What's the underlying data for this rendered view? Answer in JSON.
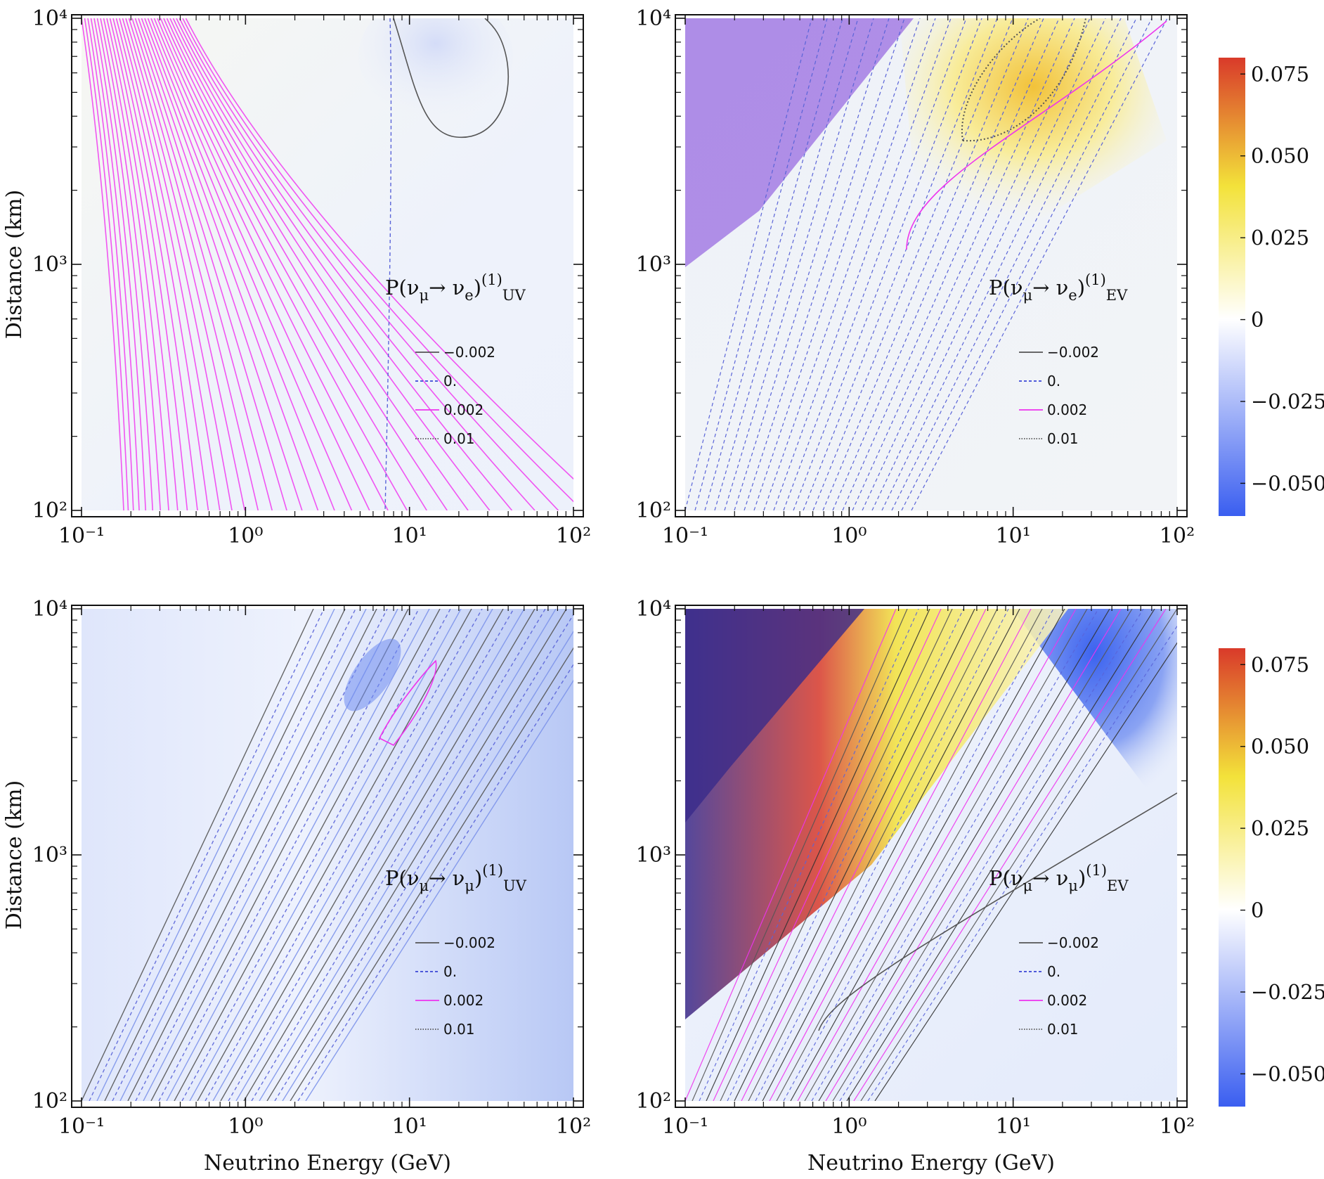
{
  "figure": {
    "xlabel": "Neutrino Energy (GeV)",
    "ylabel": "Distance (km)",
    "colorbar": {
      "ticks": [
        {
          "value": 0.075,
          "label": "0.075"
        },
        {
          "value": 0.05,
          "label": "0.050"
        },
        {
          "value": 0.025,
          "label": "0.025"
        },
        {
          "value": 0,
          "label": "0"
        },
        {
          "value": -0.025,
          "label": "−0.025"
        },
        {
          "value": -0.05,
          "label": "−0.050"
        }
      ],
      "range": [
        -0.06,
        0.08
      ],
      "colors": [
        "#3a5ef0",
        "#ffffff",
        "#f3e23a",
        "#d93a2a"
      ]
    },
    "legend": [
      {
        "label": "−0.002",
        "style": "solid",
        "color": "#555555"
      },
      {
        "label": "0.",
        "style": "dashed",
        "color": "#3a46d6"
      },
      {
        "label": "0.002",
        "style": "solid",
        "color": "#ee33ee"
      },
      {
        "label": "0.01",
        "style": "dotted",
        "color": "#555555"
      }
    ]
  },
  "chart_data": [
    {
      "type": "heatmap",
      "panel": "top-left",
      "title_base": "P(ν",
      "title_sub1": "μ",
      "title_arrow": "→ ν",
      "title_sub2": "e",
      "title_close": ")",
      "title_sup": "(1)",
      "title_subscript": "UV",
      "xlabel": "",
      "ylabel": "Distance (km)",
      "xscale": "log",
      "yscale": "log",
      "xlim": [
        0.1,
        100
      ],
      "ylim": [
        100,
        10000
      ],
      "xticks": [
        "10⁻¹",
        "10⁰",
        "10¹",
        "10²"
      ],
      "yticks": [
        "10²",
        "10³",
        "10⁴"
      ]
    },
    {
      "type": "heatmap",
      "panel": "top-right",
      "title_base": "P(ν",
      "title_sub1": "μ",
      "title_arrow": "→ ν",
      "title_sub2": "e",
      "title_close": ")",
      "title_sup": "(1)",
      "title_subscript": "EV",
      "xlabel": "",
      "ylabel": "",
      "xscale": "log",
      "yscale": "log",
      "xlim": [
        0.1,
        100
      ],
      "ylim": [
        100,
        10000
      ],
      "xticks": [
        "10⁻¹",
        "10⁰",
        "10¹",
        "10²"
      ],
      "yticks": [
        "10²",
        "10³",
        "10⁴"
      ]
    },
    {
      "type": "heatmap",
      "panel": "bottom-left",
      "title_base": "P(ν",
      "title_sub1": "μ",
      "title_arrow": "→ ν",
      "title_sub2": "μ",
      "title_close": ")",
      "title_sup": "(1)",
      "title_subscript": "UV",
      "xlabel": "Neutrino Energy (GeV)",
      "ylabel": "Distance (km)",
      "xscale": "log",
      "yscale": "log",
      "xlim": [
        0.1,
        100
      ],
      "ylim": [
        100,
        10000
      ],
      "xticks": [
        "10⁻¹",
        "10⁰",
        "10¹",
        "10²"
      ],
      "yticks": [
        "10²",
        "10³",
        "10⁴"
      ]
    },
    {
      "type": "heatmap",
      "panel": "bottom-right",
      "title_base": "P(ν",
      "title_sub1": "μ",
      "title_arrow": "→ ν",
      "title_sub2": "μ",
      "title_close": ")",
      "title_sup": "(1)",
      "title_subscript": "EV",
      "xlabel": "Neutrino Energy (GeV)",
      "ylabel": "",
      "xscale": "log",
      "yscale": "log",
      "xlim": [
        0.1,
        100
      ],
      "ylim": [
        100,
        10000
      ],
      "xticks": [
        "10⁻¹",
        "10⁰",
        "10¹",
        "10²"
      ],
      "yticks": [
        "10²",
        "10³",
        "10⁴"
      ]
    }
  ]
}
